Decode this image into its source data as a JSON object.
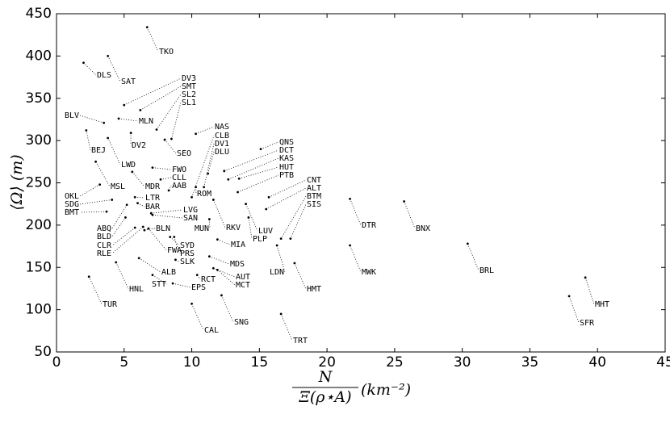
{
  "chart_data": {
    "type": "scatter",
    "xlabel_numerator": "N",
    "xlabel_denominator": "Ξ(ρ⋆A)",
    "xlabel_unit": "(km⁻²)",
    "ylabel": "⟨Ω⟩ (m)",
    "xlim": [
      0,
      45
    ],
    "xticks": [
      0,
      5,
      10,
      15,
      20,
      25,
      30,
      35,
      40,
      45
    ],
    "ylim": [
      50,
      450
    ],
    "yticks": [
      50,
      100,
      150,
      200,
      250,
      300,
      350,
      400,
      450
    ],
    "color": "#000000",
    "labels": [
      "TKO",
      "DLS",
      "SAT",
      "DV3",
      "SMT",
      "SL2",
      "SL1",
      "MLN",
      "BLV",
      "DV2",
      "SEO",
      "NAS",
      "CLB",
      "DV1",
      "DLU",
      "BEJ",
      "LWD",
      "FWO",
      "CLL",
      "AAB",
      "MDR",
      "MSL",
      "OKL",
      "SDG",
      "BMT",
      "LTR",
      "BAR",
      "LVG",
      "SAN",
      "ROM",
      "RKV",
      "MUN",
      "MIA",
      "ABQ",
      "BLD",
      "CLR",
      "RLE",
      "BLN",
      "FWA",
      "SYD",
      "PRS",
      "SLK",
      "MDS",
      "AUT",
      "MCT",
      "ALB",
      "RCT",
      "EPS",
      "STT",
      "HNL",
      "TUR",
      "CAL",
      "SNG",
      "TRT",
      "QNS",
      "DCT",
      "KAS",
      "HUT",
      "PTB",
      "LUV",
      "PLP",
      "CNT",
      "ALT",
      "BTM",
      "SIS",
      "LDN",
      "HMT",
      "DTR",
      "MWK",
      "BNX",
      "BRL",
      "MHT",
      "SFR"
    ],
    "x": [
      6.7,
      2.0,
      3.8,
      5.0,
      6.2,
      7.4,
      8.5,
      4.6,
      3.5,
      5.5,
      8.0,
      10.3,
      10.0,
      10.9,
      11.2,
      2.2,
      3.8,
      7.1,
      7.7,
      8.3,
      5.6,
      2.9,
      3.2,
      4.1,
      3.7,
      5.8,
      6.0,
      7.0,
      7.1,
      10.3,
      11.6,
      11.3,
      11.9,
      5.2,
      5.1,
      5.8,
      6.4,
      6.5,
      6.8,
      8.4,
      8.7,
      8.8,
      11.3,
      11.6,
      11.9,
      6.1,
      10.4,
      8.6,
      7.1,
      4.4,
      2.4,
      10.0,
      12.2,
      16.6,
      15.1,
      12.4,
      12.7,
      13.5,
      13.4,
      14.0,
      14.2,
      15.7,
      15.5,
      16.6,
      17.3,
      16.3,
      17.6,
      21.7,
      21.7,
      25.7,
      30.4,
      39.1,
      37.9
    ],
    "y": [
      434,
      392,
      400,
      342,
      336,
      313,
      302,
      326,
      321,
      309,
      301,
      308,
      233,
      245,
      261,
      312,
      303,
      268,
      254,
      241,
      263,
      275,
      248,
      230,
      216,
      233,
      226,
      214,
      212,
      245,
      230,
      207,
      183,
      224,
      209,
      197,
      198,
      194,
      196,
      186,
      186,
      159,
      163,
      149,
      147,
      161,
      141,
      131,
      141,
      156,
      139,
      107,
      117,
      95,
      290,
      264,
      254,
      255,
      239,
      225,
      209,
      233,
      219,
      184,
      184,
      176,
      155,
      231,
      176,
      228,
      178,
      138,
      116
    ]
  }
}
